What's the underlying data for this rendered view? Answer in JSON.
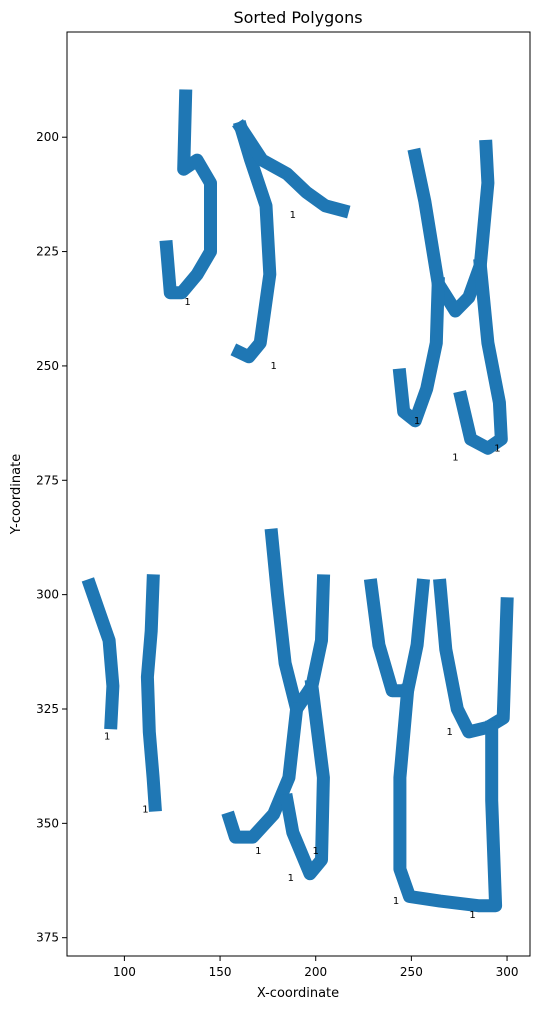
{
  "chart_data": {
    "type": "scatter",
    "title": "Sorted Polygons",
    "xlabel": "X-coordinate",
    "ylabel": "Y-coordinate",
    "xlim": [
      70,
      312
    ],
    "ylim": [
      379,
      177
    ],
    "y_inverted": true,
    "grid": false,
    "x_ticks": [
      100,
      150,
      200,
      250,
      300
    ],
    "y_ticks": [
      200,
      225,
      250,
      275,
      300,
      325,
      350,
      375
    ],
    "stroke_color": "#1f77b4",
    "polygons": [
      {
        "label": "1",
        "label_x": 133,
        "label_y": 236,
        "points": [
          [
            132,
            191
          ],
          [
            131,
            207
          ],
          [
            138,
            205
          ],
          [
            145,
            210
          ],
          [
            145,
            225
          ],
          [
            138,
            230
          ],
          [
            130,
            234
          ],
          [
            124,
            234
          ],
          [
            122,
            224
          ]
        ]
      },
      {
        "label": "1",
        "label_x": 178,
        "label_y": 250,
        "points": [
          [
            161,
            198
          ],
          [
            166,
            205
          ],
          [
            174,
            215
          ],
          [
            176,
            230
          ],
          [
            171,
            245
          ],
          [
            165,
            248
          ],
          [
            160,
            247
          ]
        ]
      },
      {
        "label": "1",
        "label_x": 188,
        "label_y": 217,
        "points": [
          [
            161,
            198
          ],
          [
            172,
            205
          ],
          [
            185,
            208
          ],
          [
            195,
            212
          ],
          [
            205,
            215
          ],
          [
            214,
            216
          ]
        ]
      },
      {
        "label": "1",
        "label_x": 273,
        "label_y": 270,
        "points": [
          [
            252,
            204
          ],
          [
            257,
            214
          ],
          [
            264,
            232
          ],
          [
            273,
            238
          ],
          [
            280,
            235
          ],
          [
            286,
            228
          ],
          [
            290,
            210
          ],
          [
            289,
            202
          ]
        ]
      },
      {
        "label": "1",
        "label_x": 253,
        "label_y": 262,
        "points": [
          [
            264,
            232
          ],
          [
            263,
            245
          ],
          [
            258,
            255
          ],
          [
            252,
            262
          ],
          [
            246,
            260
          ],
          [
            244,
            252
          ]
        ]
      },
      {
        "label": "1",
        "label_x": 295,
        "label_y": 268,
        "points": [
          [
            286,
            228
          ],
          [
            290,
            245
          ],
          [
            296,
            258
          ],
          [
            297,
            266
          ],
          [
            290,
            268
          ],
          [
            281,
            266
          ],
          [
            276,
            257
          ]
        ]
      },
      {
        "label": "1",
        "label_x": 91,
        "label_y": 331,
        "points": [
          [
            82,
            298
          ],
          [
            87,
            304
          ],
          [
            92,
            310
          ],
          [
            94,
            320
          ],
          [
            93,
            328
          ]
        ]
      },
      {
        "label": "1",
        "label_x": 111,
        "label_y": 347,
        "points": [
          [
            115,
            297
          ],
          [
            114,
            308
          ],
          [
            112,
            318
          ],
          [
            113,
            330
          ],
          [
            115,
            340
          ],
          [
            116,
            346
          ]
        ]
      },
      {
        "label": "1",
        "label_x": 187,
        "label_y": 362,
        "points": [
          [
            177,
            287
          ],
          [
            180,
            300
          ],
          [
            184,
            315
          ],
          [
            190,
            325
          ],
          [
            198,
            320
          ],
          [
            203,
            310
          ],
          [
            204,
            297
          ]
        ]
      },
      {
        "label": "1",
        "label_x": 170,
        "label_y": 356,
        "points": [
          [
            190,
            325
          ],
          [
            186,
            340
          ],
          [
            178,
            348
          ],
          [
            167,
            353
          ],
          [
            158,
            353
          ],
          [
            155,
            349
          ]
        ]
      },
      {
        "label": "1",
        "label_x": 200,
        "label_y": 356,
        "points": [
          [
            198,
            320
          ],
          [
            204,
            340
          ],
          [
            203,
            358
          ],
          [
            197,
            361
          ],
          [
            188,
            352
          ],
          [
            185,
            345
          ]
        ]
      },
      {
        "label": "1",
        "label_x": 242,
        "label_y": 367,
        "points": [
          [
            229,
            298
          ],
          [
            233,
            311
          ],
          [
            240,
            321
          ],
          [
            248,
            321
          ],
          [
            253,
            311
          ],
          [
            256,
            298
          ]
        ]
      },
      {
        "label": "1",
        "label_x": 270,
        "label_y": 330,
        "points": [
          [
            265,
            298
          ],
          [
            268,
            312
          ],
          [
            274,
            325
          ],
          [
            280,
            330
          ],
          [
            290,
            329
          ],
          [
            298,
            327
          ],
          [
            300,
            302
          ]
        ]
      },
      {
        "label": "1",
        "label_x": 282,
        "label_y": 370,
        "points": [
          [
            248,
            321
          ],
          [
            244,
            340
          ],
          [
            244,
            360
          ],
          [
            249,
            366
          ],
          [
            265,
            367
          ],
          [
            285,
            368
          ],
          [
            294,
            368
          ],
          [
            292,
            345
          ],
          [
            292,
            329
          ]
        ]
      }
    ]
  }
}
